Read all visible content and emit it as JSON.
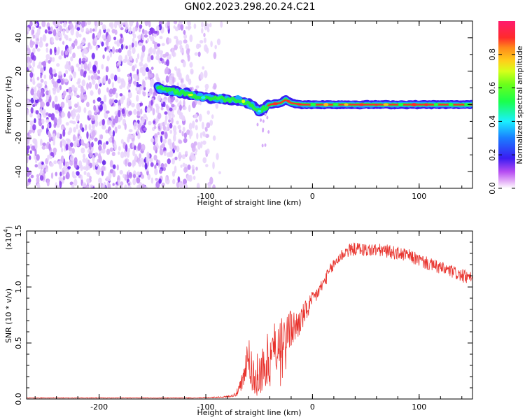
{
  "page": {
    "title": "GN02.2023.298.20.24.C21"
  },
  "colors": {
    "axis": "#000000",
    "snr_line": "#e8322c",
    "spectrogram_noise": "#7a2cf0",
    "colormap": [
      "#c63cf2",
      "#3a1cf2",
      "#2aa8ff",
      "#1af0ff",
      "#22ff22",
      "#d6ff1a",
      "#ffb81a",
      "#ff2b2b",
      "#ff1a6e"
    ]
  },
  "chart_data": [
    {
      "type": "heatmap",
      "name": "spectrogram",
      "title": "",
      "xlabel": "Height of straight line (km)",
      "ylabel": "Frequency (Hz)",
      "xlim": [
        -268,
        150
      ],
      "ylim": [
        -50,
        50
      ],
      "x_ticks": [
        "-200",
        "-100",
        "0",
        "100"
      ],
      "x_tick_values": [
        -200,
        -100,
        0,
        100
      ],
      "y_ticks": [
        "-40",
        "-20",
        "0",
        "20",
        "40"
      ],
      "y_tick_values": [
        -40,
        -20,
        0,
        20,
        40
      ],
      "noise_region_x": [
        -268,
        -85
      ],
      "signal_trace": {
        "x": [
          -145,
          -130,
          -120,
          -110,
          -100,
          -90,
          -80,
          -70,
          -60,
          -50,
          -45,
          -40,
          -30,
          -25,
          -20,
          -10,
          0,
          20,
          40,
          60,
          80,
          100,
          120,
          150
        ],
        "y": [
          10,
          8,
          7,
          5,
          4,
          4,
          3,
          3,
          1,
          -4,
          -2,
          0,
          1,
          3,
          1,
          0,
          0,
          0,
          0,
          0,
          0,
          0,
          0,
          0
        ]
      },
      "colorbar": {
        "label": "Normalized spectral amplitude",
        "ticks": [
          "0.0",
          "0.2",
          "0.4",
          "0.6",
          "0.8"
        ],
        "tick_values": [
          0.0,
          0.2,
          0.4,
          0.6,
          0.8
        ],
        "range": [
          0,
          1
        ]
      }
    },
    {
      "type": "line",
      "name": "snr",
      "title": "",
      "xlabel": "Height of straight line (km)",
      "ylabel": "SNR (10 * v/v)",
      "y_multiplier_label": "(x10",
      "y_multiplier_exp": "4",
      "xlim": [
        -268,
        150
      ],
      "ylim": [
        0,
        1.5
      ],
      "x_ticks": [
        "-200",
        "-100",
        "0",
        "100"
      ],
      "x_tick_values": [
        -200,
        -100,
        0,
        100
      ],
      "y_ticks": [
        "0.0",
        "0.5",
        "1.0",
        "1.5"
      ],
      "y_tick_values": [
        0.0,
        0.5,
        1.0,
        1.5
      ],
      "series": [
        {
          "x": [
            -268,
            -250,
            -230,
            -210,
            -190,
            -170,
            -150,
            -130,
            -110,
            -90,
            -80,
            -75,
            -70,
            -65,
            -62,
            -60,
            -58,
            -55,
            -50,
            -45,
            -40,
            -35,
            -30,
            -25,
            -20,
            -15,
            -10,
            -5,
            0,
            5,
            10,
            15,
            20,
            25,
            30,
            35,
            40,
            45,
            50,
            60,
            70,
            80,
            90,
            100,
            110,
            120,
            130,
            140,
            150
          ],
          "y": [
            0.01,
            0.01,
            0.01,
            0.01,
            0.01,
            0.01,
            0.01,
            0.01,
            0.01,
            0.015,
            0.02,
            0.03,
            0.06,
            0.15,
            0.35,
            0.42,
            0.3,
            0.2,
            0.22,
            0.28,
            0.4,
            0.48,
            0.55,
            0.6,
            0.62,
            0.65,
            0.72,
            0.8,
            0.88,
            0.95,
            1.03,
            1.12,
            1.2,
            1.26,
            1.31,
            1.33,
            1.34,
            1.34,
            1.33,
            1.33,
            1.32,
            1.3,
            1.28,
            1.24,
            1.2,
            1.17,
            1.14,
            1.1,
            1.07
          ],
          "noise_amplitude": [
            0.003,
            0.003,
            0.003,
            0.003,
            0.003,
            0.003,
            0.003,
            0.003,
            0.003,
            0.005,
            0.008,
            0.01,
            0.04,
            0.12,
            0.15,
            0.15,
            0.2,
            0.18,
            0.2,
            0.22,
            0.25,
            0.22,
            0.2,
            0.2,
            0.18,
            0.15,
            0.12,
            0.1,
            0.08,
            0.07,
            0.06,
            0.06,
            0.06,
            0.06,
            0.06,
            0.06,
            0.06,
            0.06,
            0.06,
            0.06,
            0.06,
            0.06,
            0.06,
            0.06,
            0.06,
            0.06,
            0.06,
            0.06,
            0.06
          ]
        }
      ]
    }
  ]
}
